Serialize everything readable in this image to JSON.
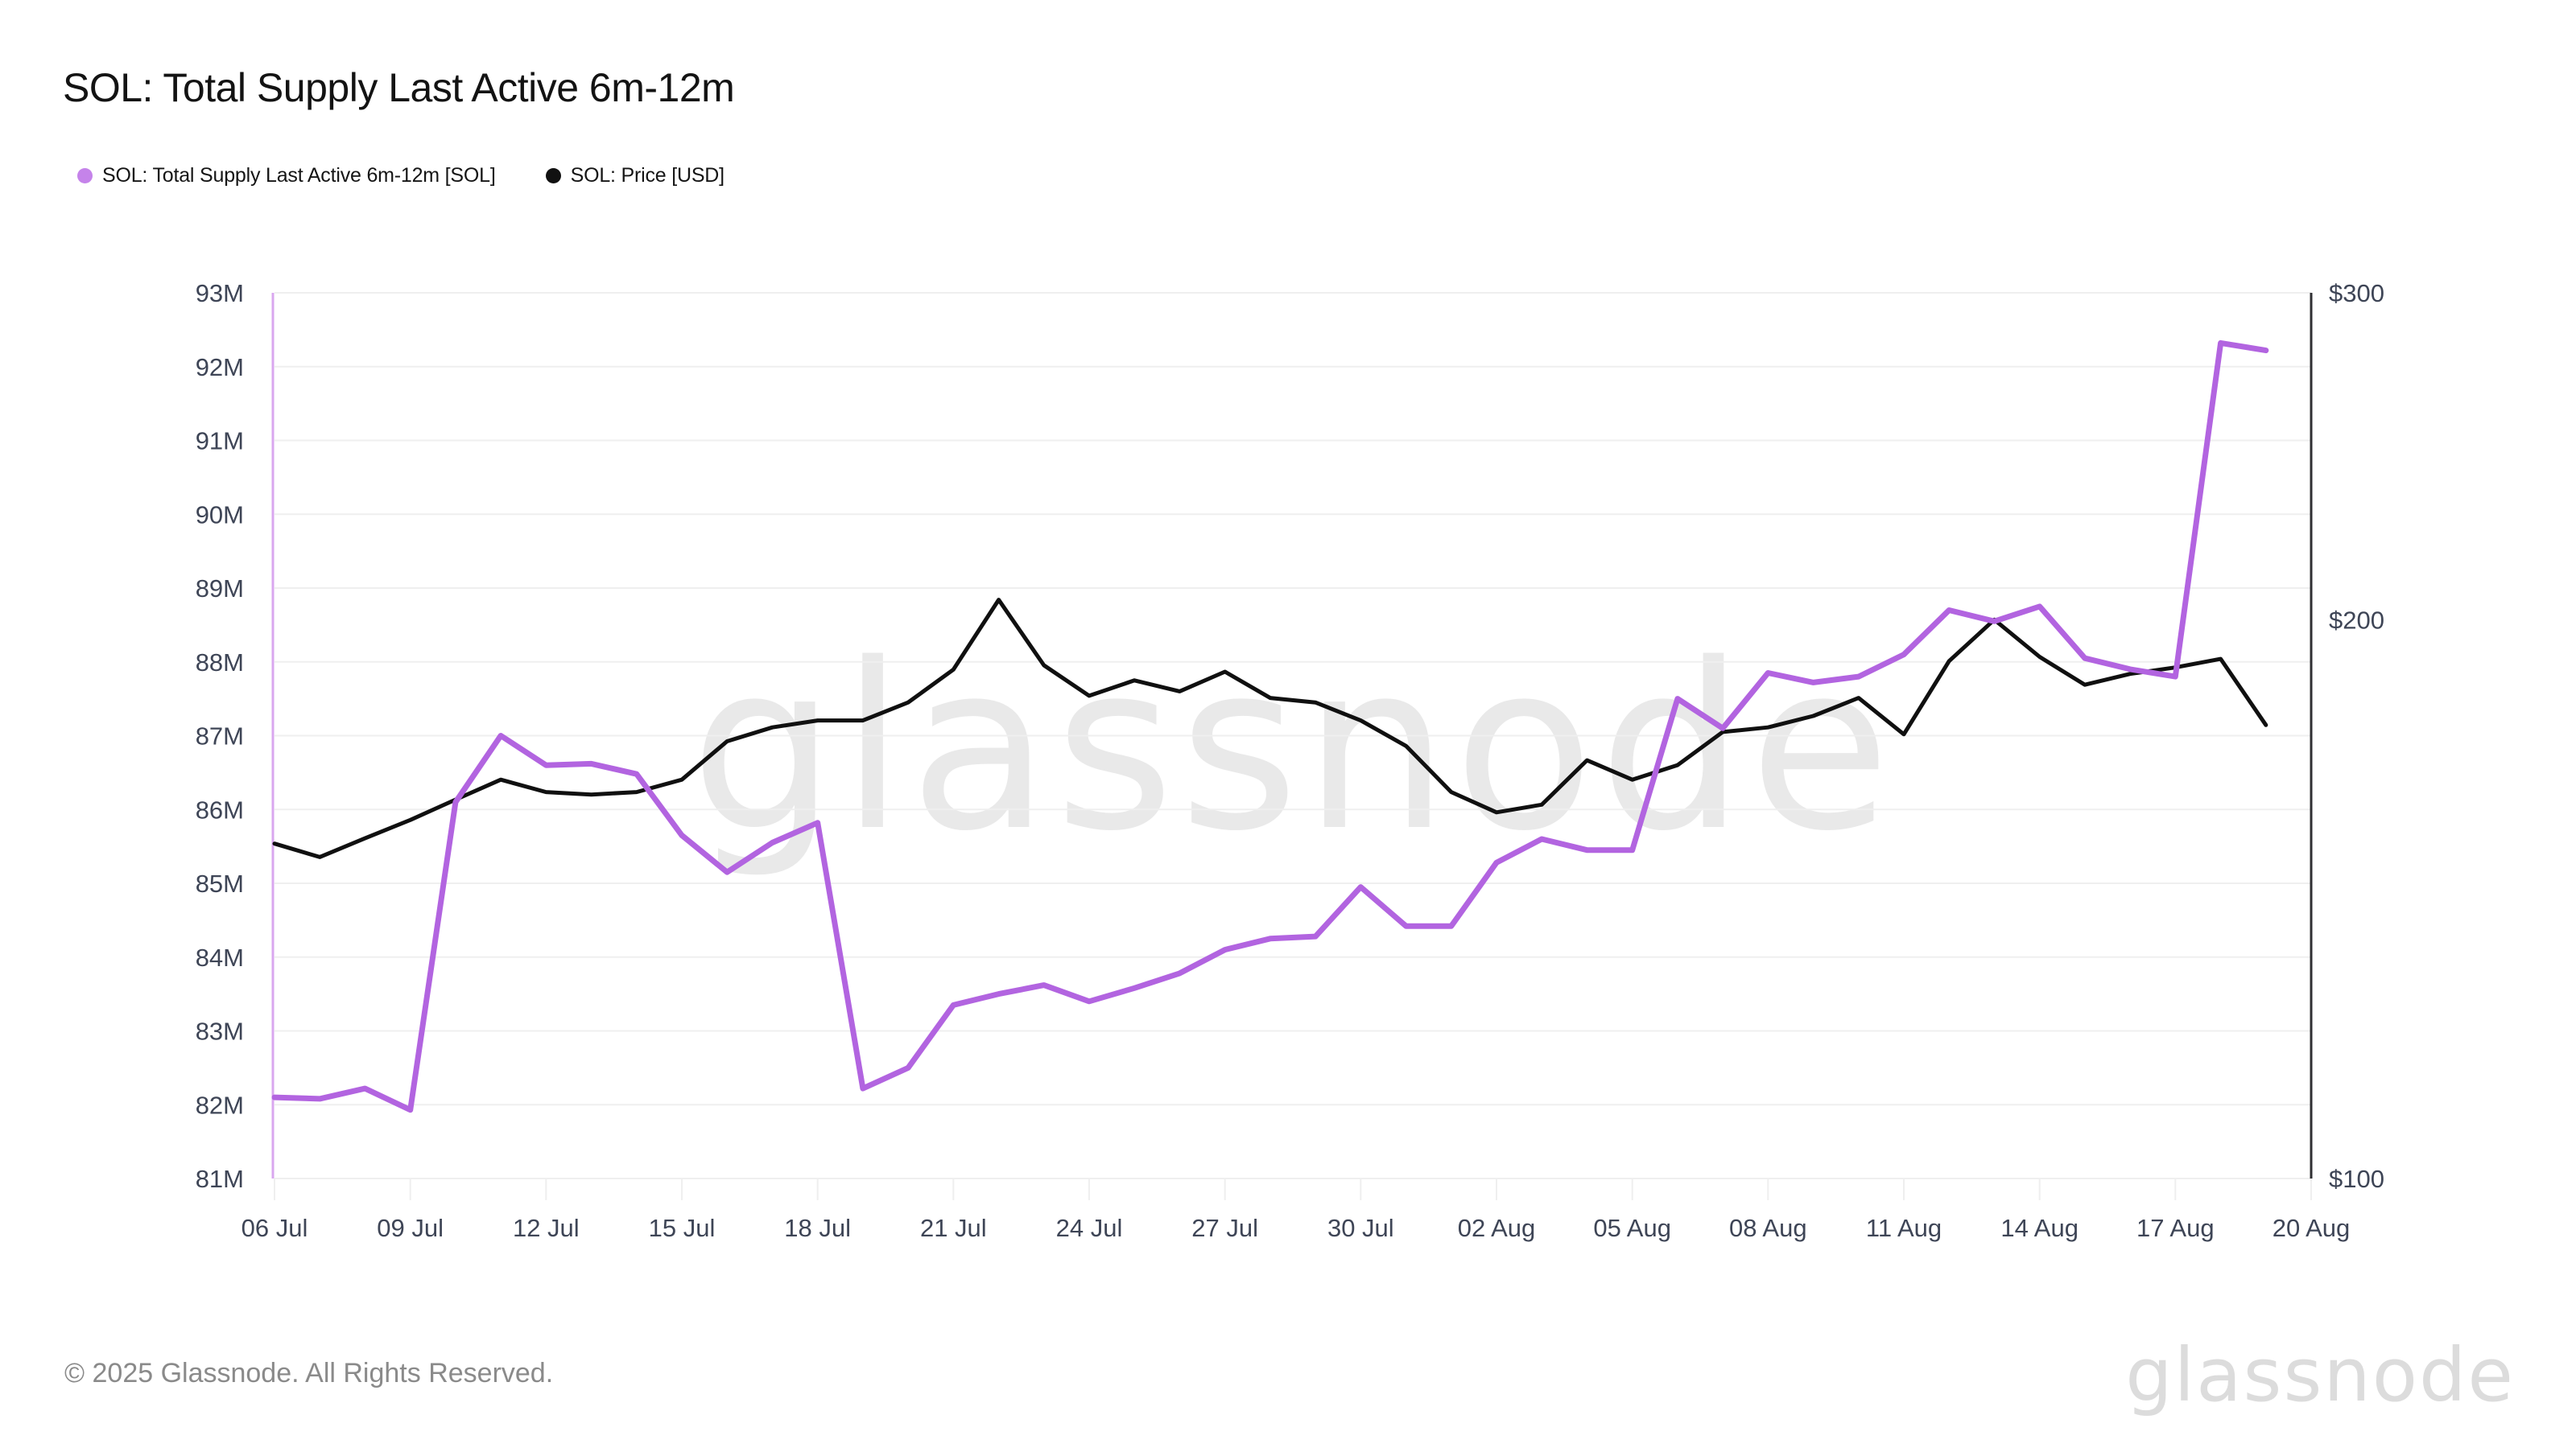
{
  "page": {
    "title": "SOL: Total Supply Last Active 6m-12m",
    "footer_copyright": "© 2025 Glassnode. All Rights Reserved.",
    "brand_wordmark": "glassnode",
    "watermark": "glassnode"
  },
  "legend": {
    "items": [
      {
        "label": "SOL: Total Supply Last Active 6m-12m [SOL]",
        "color": "#c583ea"
      },
      {
        "label": "SOL: Price [USD]",
        "color": "#111111"
      }
    ]
  },
  "style": {
    "supply_line_color": "#b264e0",
    "price_line_color": "#101010",
    "left_axis_line_color": "#d9a7ef",
    "right_axis_line_color": "#2f2f33",
    "gridline_color": "#efefef",
    "axis_text_color": "#3e4556",
    "watermark_color": "#e9e9e9"
  },
  "chart_data": {
    "type": "line",
    "title": "SOL: Total Supply Last Active 6m-12m",
    "x_dates": [
      "06 Jul",
      "07 Jul",
      "08 Jul",
      "09 Jul",
      "10 Jul",
      "11 Jul",
      "12 Jul",
      "13 Jul",
      "14 Jul",
      "15 Jul",
      "16 Jul",
      "17 Jul",
      "18 Jul",
      "19 Jul",
      "20 Jul",
      "21 Jul",
      "22 Jul",
      "23 Jul",
      "24 Jul",
      "25 Jul",
      "26 Jul",
      "27 Jul",
      "28 Jul",
      "29 Jul",
      "30 Jul",
      "31 Jul",
      "01 Aug",
      "02 Aug",
      "03 Aug",
      "04 Aug",
      "05 Aug",
      "06 Aug",
      "07 Aug",
      "08 Aug",
      "09 Aug",
      "10 Aug",
      "11 Aug",
      "12 Aug",
      "13 Aug",
      "14 Aug",
      "15 Aug",
      "16 Aug",
      "17 Aug",
      "18 Aug",
      "19 Aug"
    ],
    "x_axis": {
      "tick_labels": [
        "06 Jul",
        "09 Jul",
        "12 Jul",
        "15 Jul",
        "18 Jul",
        "21 Jul",
        "24 Jul",
        "27 Jul",
        "30 Jul",
        "02 Aug",
        "05 Aug",
        "08 Aug",
        "11 Aug",
        "14 Aug",
        "17 Aug",
        "20 Aug"
      ],
      "tick_every_days": 3,
      "total_days_span": 45
    },
    "y_left": {
      "title": "Supply (SOL)",
      "unit": "M",
      "min": 81,
      "max": 93,
      "scale": "linear",
      "tick_labels": [
        "93M",
        "92M",
        "91M",
        "90M",
        "89M",
        "88M",
        "87M",
        "86M",
        "85M",
        "84M",
        "83M",
        "82M",
        "81M"
      ]
    },
    "y_right": {
      "title": "Price (USD)",
      "min": 100,
      "max": 300,
      "scale": "log",
      "tick_values": [
        300,
        200,
        100
      ],
      "tick_labels": [
        "$300",
        "$200",
        "$100"
      ]
    },
    "grid": "horizontal",
    "legend_position": "top-left",
    "series": [
      {
        "name": "SOL: Total Supply Last Active 6m-12m [SOL]",
        "axis": "left",
        "unit": "M SOL",
        "color": "#b264e0",
        "values": [
          82.1,
          82.08,
          82.22,
          81.93,
          86.1,
          87.0,
          86.6,
          86.62,
          86.48,
          85.65,
          85.15,
          85.55,
          85.82,
          82.22,
          82.5,
          83.35,
          83.5,
          83.62,
          83.4,
          83.58,
          83.78,
          84.1,
          84.25,
          84.28,
          84.95,
          84.42,
          84.42,
          85.28,
          85.6,
          85.45,
          85.45,
          87.5,
          87.1,
          87.85,
          87.72,
          87.8,
          88.1,
          88.7,
          88.55,
          88.75,
          88.05,
          87.9,
          87.8,
          92.32,
          92.22
        ]
      },
      {
        "name": "SOL: Price [USD]",
        "axis": "right",
        "unit": "USD",
        "color": "#101010",
        "values": [
          151.5,
          149.0,
          152.5,
          156.0,
          160.0,
          164.0,
          161.5,
          161.0,
          161.5,
          164.0,
          172.0,
          175.0,
          176.5,
          176.5,
          180.5,
          188.0,
          205.0,
          189.0,
          182.0,
          185.5,
          183.0,
          187.5,
          181.5,
          180.5,
          176.5,
          171.0,
          161.5,
          157.5,
          159.0,
          168.0,
          164.0,
          167.0,
          174.0,
          175.0,
          177.5,
          181.5,
          173.5,
          190.0,
          200.0,
          191.0,
          184.5,
          187.0,
          188.5,
          190.5,
          175.5
        ]
      }
    ]
  }
}
